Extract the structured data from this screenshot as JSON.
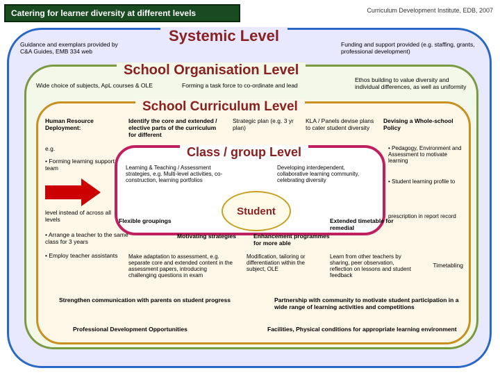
{
  "title": "Catering for learner diversity at different levels",
  "attrib": "Curriculum Development Institute, EDB, 2007",
  "systemic": {
    "label": "Systemic Level",
    "left": "Guidance and exemplars provided by C&A Guides, EMB 334 web",
    "right": "Funding and support provided (e.g. staffing, grants, professional development)"
  },
  "schoolOrg": {
    "label": "School Organisation Level",
    "left": "Wide choice of subjects, ApL courses & OLE",
    "mid": "Forming a task force to co-ordinate and lead",
    "right": "Ethos building to value diversity and individual differences, as well as uniformity"
  },
  "schoolCurr": {
    "label": "School Curriculum Level",
    "r1": {
      "c1": "Human Resource Deployment:",
      "c2": "Identify the core and extended / elective parts of the curriculum for different",
      "c3": "Strategic plan (e.g. 3 yr plan)",
      "c4": "KLA / Panels devise plans to cater student diversity",
      "c5": "Devising a Whole-school Policy"
    },
    "eg": "e.g.",
    "bul1": "• Forming learning support team",
    "bul2": "level instead of across all levels",
    "bul3": "• Arrange a teacher to the same class for 3 years",
    "bul4": "• Employ teacher assistants",
    "flex": "Flexible groupings",
    "mot": "Motivating strategies",
    "ext": "Extended timetable for remedial",
    "enh": "Enhancement programmes for more able",
    "r4": {
      "c1": "Make adaptation to assessment, e.g. separate core and extended content in the assessment papers, introducing challenging questions in exam",
      "c2": "Modification, tailoring or differentiation within the subject, OLE",
      "c3": "Learn from other teachers by sharing, peer observation, reflection on lessons and student feedback"
    },
    "side1": "• Pedagogy, Environment and Assessment to motivate learning",
    "side2": "• Student learning profile to",
    "side3": "prescription in report record",
    "side4": "Timetabling",
    "bot1": "Strengthen communication with parents on student progress",
    "bot2": "Partnership with community to motivate student participation in a wide range of learning activities and competitions",
    "bot3": "Professional Development Opportunities",
    "bot4": "Facilities, Physical conditions for appropriate learning environment"
  },
  "classLvl": {
    "label": "Class / group Level",
    "c1": "Learning & Teaching / Assessment strategies, \ne.g. Multi-level activities, co-construction, learning portfolios",
    "c2": "Developing interdependent, collaborative learning community, celebrating diversity"
  },
  "student": "Student",
  "colors": {
    "titleBg": "#1a4a20",
    "outerBorder": "#2a68c8",
    "outerBg": "#e8e8ff",
    "orgBorder": "#7a9a40",
    "orgBg": "#f4f8e8",
    "currBorder": "#c89020",
    "currBg": "#fff8e8",
    "classBorder": "#c02060",
    "levelText": "#8a2020",
    "arrow": "#c00"
  }
}
